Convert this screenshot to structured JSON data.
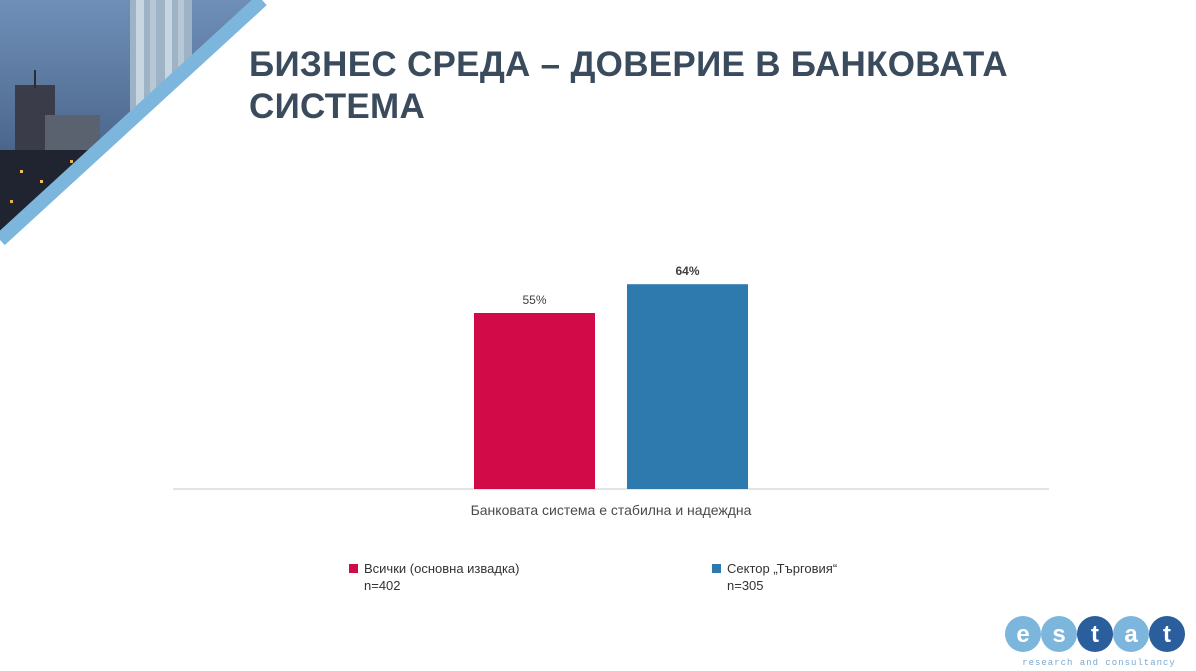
{
  "slide": {
    "title": "БИЗНЕС СРЕДА – ДОВЕРИЕ В БАНКОВАТА СИСТЕМА"
  },
  "chart_data": {
    "type": "bar",
    "categories": [
      "Банковата система е стабилна и надеждна"
    ],
    "series": [
      {
        "name": "Всички (основна извадка)",
        "note": "n=402",
        "values": [
          55
        ],
        "label": "55%",
        "color": "#d20a47"
      },
      {
        "name": "Сектор „Търговия“",
        "note": "n=305",
        "values": [
          64
        ],
        "label": "64%",
        "color": "#2e7aae"
      }
    ],
    "ylim": [
      0,
      75
    ],
    "grid": false,
    "legend": "bottom"
  },
  "logo": {
    "text": "estat",
    "tagline": "research and consultancy"
  }
}
